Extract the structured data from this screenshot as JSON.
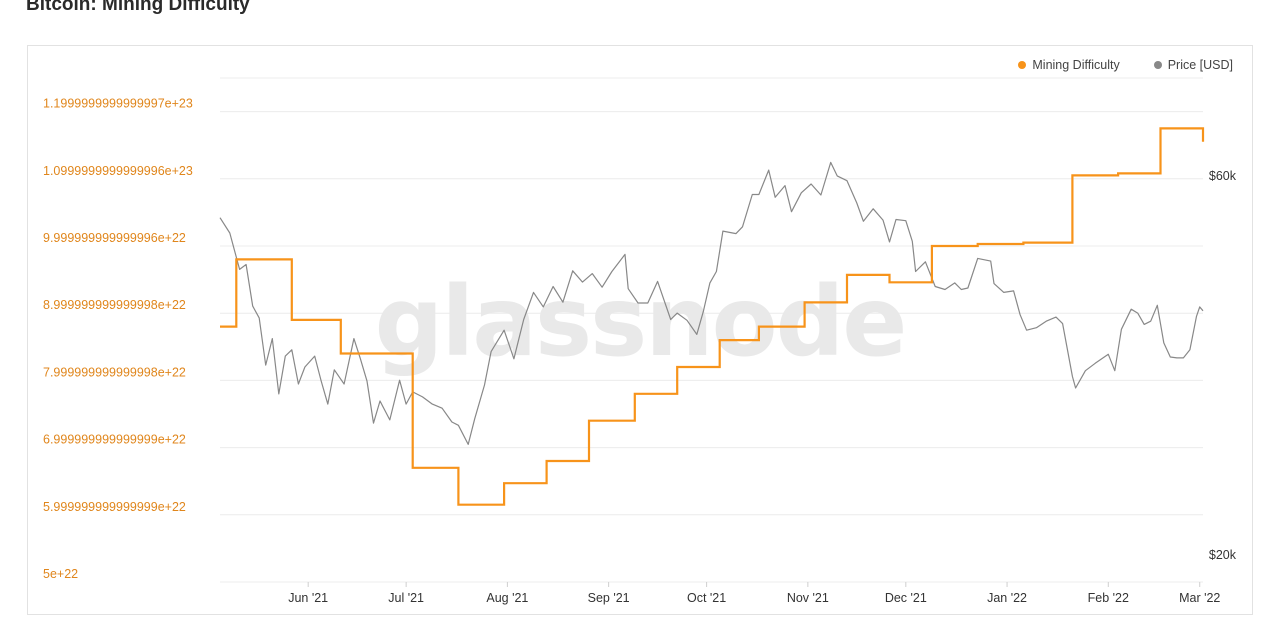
{
  "page": {
    "title": "Bitcoin: Mining Difficulty"
  },
  "watermark": "glassnode",
  "legend": [
    {
      "label": "Mining Difficulty",
      "color": "#f7931a"
    },
    {
      "label": "Price [USD]",
      "color": "#888888"
    }
  ],
  "colors": {
    "difficulty": "#f7931a",
    "price": "#888888",
    "grid": "#ececec",
    "left_tick": "#e0861c",
    "right_tick": "#333333"
  },
  "chart_data": {
    "type": "line",
    "x_ticks": [
      "Jun '21",
      "Jul '21",
      "Aug '21",
      "Sep '21",
      "Oct '21",
      "Nov '21",
      "Dec '21",
      "Jan '22",
      "Feb '22",
      "Mar '22"
    ],
    "y_left": {
      "tick_labels": [
        "5e+22",
        "5.999999999999999e+22",
        "6.999999999999999e+22",
        "7.999999999999998e+22",
        "8.999999999999998e+22",
        "9.999999999999996e+22",
        "1.0999999999999996e+23",
        "1.1999999999999997e+23"
      ],
      "range": [
        5e+22,
        1.25e+23
      ]
    },
    "y_right": {
      "tick_labels": [
        "$20k",
        "$60k"
      ],
      "scale": "log",
      "range": [
        20000,
        90000
      ]
    },
    "x_range": [
      "2021-05-05",
      "2022-03-02"
    ],
    "grid": true,
    "legend_position": "top-right",
    "series": [
      {
        "name": "Mining Difficulty",
        "color": "#f7931a",
        "step": true,
        "points": [
          [
            "2021-05-05",
            8.8e+22
          ],
          [
            "2021-05-10",
            9.8e+22
          ],
          [
            "2021-05-27",
            8.9e+22
          ],
          [
            "2021-06-11",
            8.4e+22
          ],
          [
            "2021-07-03",
            6.7e+22
          ],
          [
            "2021-07-17",
            6.15e+22
          ],
          [
            "2021-07-31",
            6.47e+22
          ],
          [
            "2021-08-13",
            6.8e+22
          ],
          [
            "2021-08-26",
            7.4e+22
          ],
          [
            "2021-09-09",
            7.8e+22
          ],
          [
            "2021-09-22",
            8.2e+22
          ],
          [
            "2021-10-05",
            8.6e+22
          ],
          [
            "2021-10-17",
            8.8e+22
          ],
          [
            "2021-10-31",
            9.16e+22
          ],
          [
            "2021-11-13",
            9.57e+22
          ],
          [
            "2021-11-26",
            9.46e+22
          ],
          [
            "2021-12-09",
            1e+23
          ],
          [
            "2021-12-23",
            1.003e+23
          ],
          [
            "2022-01-06",
            1.005e+23
          ],
          [
            "2022-01-21",
            1.105e+23
          ],
          [
            "2022-02-04",
            1.108e+23
          ],
          [
            "2022-02-17",
            1.175e+23
          ],
          [
            "2022-03-01",
            1.175e+23
          ],
          [
            "2022-03-02",
            1.155e+23
          ]
        ]
      },
      {
        "name": "Price [USD]",
        "color": "#888888",
        "points": [
          [
            "2021-05-05",
            57500
          ],
          [
            "2021-05-08",
            55000
          ],
          [
            "2021-05-11",
            49500
          ],
          [
            "2021-05-13",
            50200
          ],
          [
            "2021-05-15",
            44500
          ],
          [
            "2021-05-17",
            43000
          ],
          [
            "2021-05-19",
            37500
          ],
          [
            "2021-05-21",
            40500
          ],
          [
            "2021-05-23",
            34500
          ],
          [
            "2021-05-25",
            38500
          ],
          [
            "2021-05-27",
            39200
          ],
          [
            "2021-05-29",
            35500
          ],
          [
            "2021-05-31",
            37300
          ],
          [
            "2021-06-03",
            38500
          ],
          [
            "2021-06-05",
            35800
          ],
          [
            "2021-06-07",
            33500
          ],
          [
            "2021-06-09",
            37000
          ],
          [
            "2021-06-12",
            35500
          ],
          [
            "2021-06-15",
            40500
          ],
          [
            "2021-06-17",
            38200
          ],
          [
            "2021-06-19",
            35800
          ],
          [
            "2021-06-21",
            31700
          ],
          [
            "2021-06-23",
            33800
          ],
          [
            "2021-06-26",
            32000
          ],
          [
            "2021-06-29",
            35900
          ],
          [
            "2021-07-01",
            33500
          ],
          [
            "2021-07-03",
            34700
          ],
          [
            "2021-07-06",
            34200
          ],
          [
            "2021-07-09",
            33500
          ],
          [
            "2021-07-12",
            33100
          ],
          [
            "2021-07-15",
            31800
          ],
          [
            "2021-07-17",
            31500
          ],
          [
            "2021-07-20",
            29800
          ],
          [
            "2021-07-22",
            32100
          ],
          [
            "2021-07-25",
            35400
          ],
          [
            "2021-07-27",
            39000
          ],
          [
            "2021-07-31",
            41500
          ],
          [
            "2021-08-03",
            38200
          ],
          [
            "2021-08-06",
            42800
          ],
          [
            "2021-08-09",
            46300
          ],
          [
            "2021-08-12",
            44400
          ],
          [
            "2021-08-15",
            47100
          ],
          [
            "2021-08-18",
            45000
          ],
          [
            "2021-08-21",
            49300
          ],
          [
            "2021-08-24",
            47700
          ],
          [
            "2021-08-27",
            48900
          ],
          [
            "2021-08-30",
            47000
          ],
          [
            "2021-09-02",
            49200
          ],
          [
            "2021-09-06",
            51700
          ],
          [
            "2021-09-07",
            46800
          ],
          [
            "2021-09-10",
            44900
          ],
          [
            "2021-09-13",
            44900
          ],
          [
            "2021-09-16",
            47800
          ],
          [
            "2021-09-20",
            42800
          ],
          [
            "2021-09-22",
            43600
          ],
          [
            "2021-09-25",
            42700
          ],
          [
            "2021-09-28",
            41000
          ],
          [
            "2021-09-30",
            43800
          ],
          [
            "2021-10-02",
            47600
          ],
          [
            "2021-10-04",
            49200
          ],
          [
            "2021-10-06",
            55300
          ],
          [
            "2021-10-10",
            54900
          ],
          [
            "2021-10-12",
            56000
          ],
          [
            "2021-10-15",
            61500
          ],
          [
            "2021-10-17",
            61500
          ],
          [
            "2021-10-20",
            66000
          ],
          [
            "2021-10-22",
            61000
          ],
          [
            "2021-10-25",
            63100
          ],
          [
            "2021-10-27",
            58500
          ],
          [
            "2021-10-30",
            61800
          ],
          [
            "2021-11-02",
            63400
          ],
          [
            "2021-11-05",
            61400
          ],
          [
            "2021-11-08",
            67500
          ],
          [
            "2021-11-10",
            64900
          ],
          [
            "2021-11-13",
            64000
          ],
          [
            "2021-11-16",
            60000
          ],
          [
            "2021-11-18",
            56900
          ],
          [
            "2021-11-21",
            59000
          ],
          [
            "2021-11-24",
            57100
          ],
          [
            "2021-11-26",
            53600
          ],
          [
            "2021-11-28",
            57200
          ],
          [
            "2021-12-01",
            57000
          ],
          [
            "2021-12-03",
            53700
          ],
          [
            "2021-12-04",
            49200
          ],
          [
            "2021-12-07",
            50600
          ],
          [
            "2021-12-10",
            47100
          ],
          [
            "2021-12-13",
            46700
          ],
          [
            "2021-12-16",
            47600
          ],
          [
            "2021-12-18",
            46700
          ],
          [
            "2021-12-20",
            46900
          ],
          [
            "2021-12-23",
            51100
          ],
          [
            "2021-12-27",
            50700
          ],
          [
            "2021-12-28",
            47500
          ],
          [
            "2021-12-31",
            46300
          ],
          [
            "2022-01-03",
            46500
          ],
          [
            "2022-01-05",
            43400
          ],
          [
            "2022-01-07",
            41500
          ],
          [
            "2022-01-10",
            41800
          ],
          [
            "2022-01-13",
            42600
          ],
          [
            "2022-01-16",
            43100
          ],
          [
            "2022-01-18",
            42300
          ],
          [
            "2022-01-21",
            36300
          ],
          [
            "2022-01-22",
            35100
          ],
          [
            "2022-01-25",
            36900
          ],
          [
            "2022-01-28",
            37700
          ],
          [
            "2022-02-01",
            38700
          ],
          [
            "2022-02-03",
            36900
          ],
          [
            "2022-02-05",
            41600
          ],
          [
            "2022-02-08",
            44100
          ],
          [
            "2022-02-10",
            43600
          ],
          [
            "2022-02-12",
            42200
          ],
          [
            "2022-02-14",
            42600
          ],
          [
            "2022-02-16",
            44600
          ],
          [
            "2022-02-18",
            40000
          ],
          [
            "2022-02-20",
            38400
          ],
          [
            "2022-02-22",
            38300
          ],
          [
            "2022-02-24",
            38300
          ],
          [
            "2022-02-26",
            39200
          ],
          [
            "2022-02-28",
            43200
          ],
          [
            "2022-03-01",
            44400
          ],
          [
            "2022-03-02",
            43900
          ]
        ]
      }
    ]
  }
}
